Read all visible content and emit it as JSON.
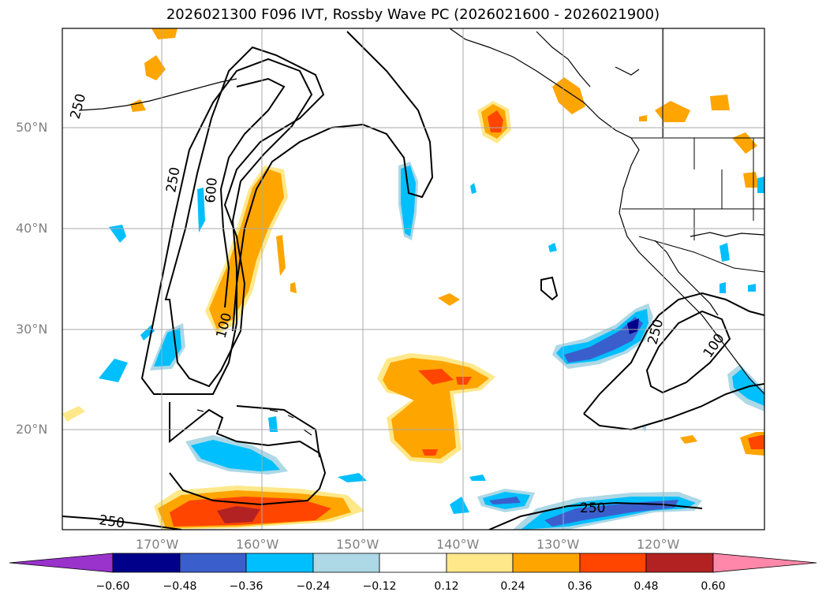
{
  "title": "2026021300 F096 IVT, Rossby Wave PC (2026021600 - 2026021900)",
  "lat_labels": [
    "50°N",
    "40°N",
    "30°N",
    "20°N"
  ],
  "lon_labels": [
    "170°W",
    "160°W",
    "150°W",
    "140°W",
    "130°W",
    "120°W"
  ],
  "contour_labels": [
    "250",
    "250",
    "600",
    "100",
    "250",
    "100",
    "250",
    "250"
  ],
  "colorbar": {
    "ticks": [
      "−0.60",
      "−0.48",
      "−0.36",
      "−0.24",
      "−0.12",
      "0.12",
      "0.24",
      "0.36",
      "0.48",
      "0.60"
    ],
    "colors": [
      "#9933cc",
      "#00008b",
      "#3a5fcd",
      "#00bfff",
      "#add8e6",
      "#ffffff",
      "#ffe88a",
      "#ffa500",
      "#ff4500",
      "#b22222",
      "#ff88aa"
    ]
  }
}
